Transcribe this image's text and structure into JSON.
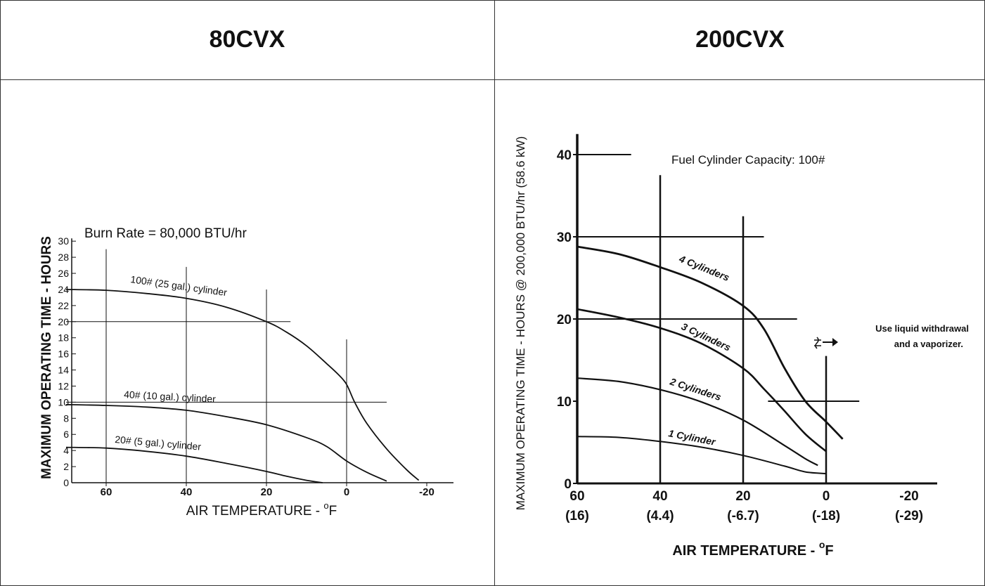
{
  "tables": {
    "left_header": "80CVX",
    "right_header": "200CVX"
  },
  "chart_data": [
    {
      "type": "line",
      "title": "Burn Rate = 80,000 BTU/hr",
      "xlabel": "AIR TEMPERATURE - °F",
      "xlabel_main": "AIR TEMPERATURE - ",
      "xlabel_sup": "o",
      "xlabel_end": "F",
      "ylabel": "MAXIMUM OPERATING TIME - HOURS",
      "xlim": [
        70,
        -25
      ],
      "ylim": [
        0,
        30
      ],
      "x_reversed": true,
      "x_ticks": [
        60,
        40,
        20,
        0,
        -20
      ],
      "x_tick_labels": [
        "60",
        "40",
        "20",
        "0",
        "-20"
      ],
      "y_ticks": [
        0,
        2,
        4,
        6,
        8,
        10,
        12,
        14,
        16,
        18,
        20,
        22,
        24,
        26,
        28,
        30
      ],
      "y_tick_labels": [
        "0",
        "2",
        "4",
        "6",
        "8",
        "10",
        "12",
        "14",
        "16",
        "18",
        "20",
        "22",
        "24",
        "26",
        "28",
        "30"
      ],
      "series": [
        {
          "name": "100# (25 gal.) cylinder",
          "x": [
            70,
            60,
            50,
            40,
            30,
            20,
            15,
            10,
            5,
            2,
            0,
            -2,
            -5,
            -10,
            -15,
            -18
          ],
          "y": [
            24,
            23.9,
            23.5,
            22.9,
            21.8,
            20,
            18.7,
            17,
            14.8,
            13.4,
            12.2,
            10,
            7.4,
            4.2,
            1.6,
            0.3
          ]
        },
        {
          "name": "40# (10 gal.) cylinder",
          "x": [
            70,
            60,
            50,
            40,
            30,
            20,
            10,
            5,
            0,
            -5,
            -10
          ],
          "y": [
            9.7,
            9.6,
            9.4,
            9,
            8.2,
            7.2,
            5.6,
            4.5,
            2.7,
            1.3,
            0.2
          ]
        },
        {
          "name": "20# (5 gal.) cylinder",
          "x": [
            70,
            60,
            50,
            40,
            30,
            20,
            15,
            10,
            6
          ],
          "y": [
            4.4,
            4.3,
            3.9,
            3.3,
            2.4,
            1.4,
            0.8,
            0.3,
            0
          ]
        }
      ],
      "grid_vertical": [
        {
          "x": 60,
          "y_top": 29
        },
        {
          "x": 40,
          "y_top": 26.8
        },
        {
          "x": 20,
          "y_top": 24
        },
        {
          "x": 0,
          "y_top": 17.8
        }
      ],
      "grid_horizontal": [
        {
          "y": 20,
          "x_end": 14
        },
        {
          "y": 10,
          "x_end": -10
        }
      ]
    },
    {
      "type": "line",
      "title": "Fuel Cylinder Capacity: 100#",
      "xlabel": "AIR TEMPERATURE - °F",
      "xlabel_main": "AIR TEMPERATURE - ",
      "xlabel_sup": "o",
      "xlabel_end": "F",
      "ylabel": "MAXIMUM OPERATING TIME - HOURS @ 200,000 BTU/hr (58.6 kW)",
      "xlim": [
        60,
        -26
      ],
      "ylim": [
        0,
        42
      ],
      "x_reversed": true,
      "x_ticks": [
        60,
        40,
        20,
        0,
        -20
      ],
      "x_tick_labels": [
        "60",
        "40",
        "20",
        "0",
        "-20"
      ],
      "x_tick_sublabels": [
        "(16)",
        "(4.4)",
        "(-6.7)",
        "(-18)",
        "(-29)"
      ],
      "y_ticks": [
        0,
        10,
        20,
        30,
        40
      ],
      "y_tick_labels": [
        "0",
        "10",
        "20",
        "30",
        "40"
      ],
      "annotation": "Use liquid withdrawal\nand a vaporizer.",
      "annotation_lines": [
        "Use liquid withdrawal",
        "and a vaporizer."
      ],
      "series": [
        {
          "name": "4 Cylinders",
          "x": [
            60,
            50,
            40,
            30,
            20,
            15,
            10,
            5,
            0,
            -4
          ],
          "y": [
            28.8,
            27.9,
            26.3,
            24.4,
            21.6,
            18.8,
            14,
            10,
            7.5,
            5.4
          ]
        },
        {
          "name": "3 Cylinders",
          "x": [
            60,
            50,
            40,
            30,
            20,
            15,
            10,
            5,
            0
          ],
          "y": [
            21.2,
            20.2,
            18.9,
            17,
            14,
            11.5,
            8.8,
            6,
            3.9
          ]
        },
        {
          "name": "2 Cylinders",
          "x": [
            60,
            50,
            40,
            30,
            20,
            10,
            5,
            2
          ],
          "y": [
            12.8,
            12.4,
            11.4,
            9.9,
            7.7,
            4.6,
            3,
            2.2
          ]
        },
        {
          "name": "1 Cylinder",
          "x": [
            60,
            50,
            40,
            30,
            20,
            10,
            5,
            0
          ],
          "y": [
            5.7,
            5.6,
            5.1,
            4.4,
            3.4,
            2.1,
            1.4,
            1.2
          ]
        }
      ],
      "grid_vertical": [
        {
          "x": 60,
          "y_top": 42.5
        },
        {
          "x": 40,
          "y_top": 37.5
        },
        {
          "x": 20,
          "y_top": 32.5
        },
        {
          "x": 0,
          "y_top": 15.5
        }
      ],
      "grid_horizontal": [
        {
          "y": 40,
          "x_start": 60,
          "x_end": 47
        },
        {
          "y": 30,
          "x_start": 60,
          "x_end": 15
        },
        {
          "y": 20,
          "x_start": 60,
          "x_end": 7
        },
        {
          "y": 10,
          "x_start": 14,
          "x_end": -8
        }
      ]
    }
  ]
}
